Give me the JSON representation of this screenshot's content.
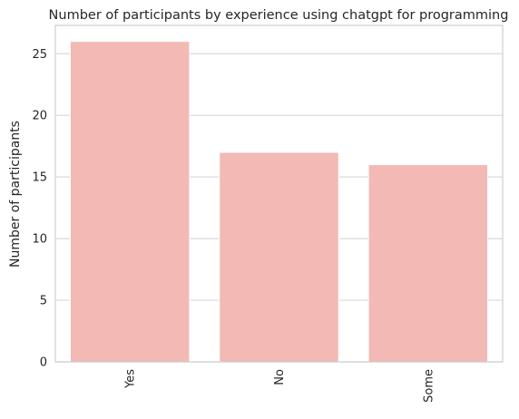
{
  "chart_data": {
    "type": "bar",
    "title": "Number of participants by experience using chatgpt for programming",
    "xlabel": "",
    "ylabel": "Number of participants",
    "categories": [
      "Yes",
      "No",
      "Some"
    ],
    "values": [
      26,
      17,
      16
    ],
    "ylim": [
      0,
      27.3
    ],
    "yticks": [
      0,
      5,
      10,
      15,
      20,
      25
    ],
    "grid": true,
    "bar_color": "#f2b9b5",
    "x_tick_rotation": "vertical"
  }
}
